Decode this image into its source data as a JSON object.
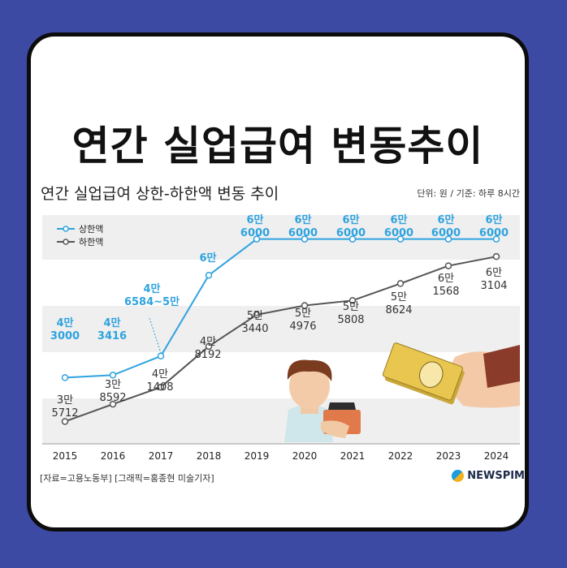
{
  "headline": "연간 실업급여 변동추이",
  "subtitle": "연간 실업급여 상한-하한액 변동 추이",
  "unit_note": "단위: 원 / 기준: 하루 8시간",
  "source": "[자료=고용노동부] [그래픽=홍종현 미술기자]",
  "logo_text": "NEWSPIM",
  "colors": {
    "upper": "#2fa3df",
    "lower": "#555555",
    "band": "#efefef",
    "background": "#3d4aa3"
  },
  "chart_data": {
    "type": "line",
    "title": "연간 실업급여 상한-하한액 변동 추이",
    "x": [
      "2015",
      "2016",
      "2017",
      "2018",
      "2019",
      "2020",
      "2021",
      "2022",
      "2023",
      "2024"
    ],
    "series": [
      {
        "name": "상한액",
        "values": [
          43000,
          43416,
          46584,
          60000,
          66000,
          66000,
          66000,
          66000,
          66000,
          66000
        ],
        "labels": [
          [
            "4만",
            "3000"
          ],
          [
            "4만",
            "3416"
          ],
          [
            "4만",
            "6584~5만"
          ],
          [
            "6만"
          ],
          [
            "6만",
            "6000"
          ],
          [
            "6만",
            "6000"
          ],
          [
            "6만",
            "6000"
          ],
          [
            "6만",
            "6000"
          ],
          [
            "6만",
            "6000"
          ],
          [
            "6만",
            "6000"
          ]
        ]
      },
      {
        "name": "하한액",
        "values": [
          35712,
          38592,
          41408,
          48192,
          53440,
          54976,
          55808,
          58624,
          61568,
          63104
        ],
        "labels": [
          [
            "3만",
            "5712"
          ],
          [
            "3만",
            "8592"
          ],
          [
            "4만",
            "1408"
          ],
          [
            "4만",
            "8192"
          ],
          [
            "5만",
            "3440"
          ],
          [
            "5만",
            "4976"
          ],
          [
            "5만",
            "5808"
          ],
          [
            "5만",
            "8624"
          ],
          [
            "6만",
            "1568"
          ],
          [
            "6만",
            "3104"
          ]
        ]
      }
    ],
    "ylim": [
      32000,
      70000
    ],
    "grid": false,
    "legend": "top-left"
  }
}
